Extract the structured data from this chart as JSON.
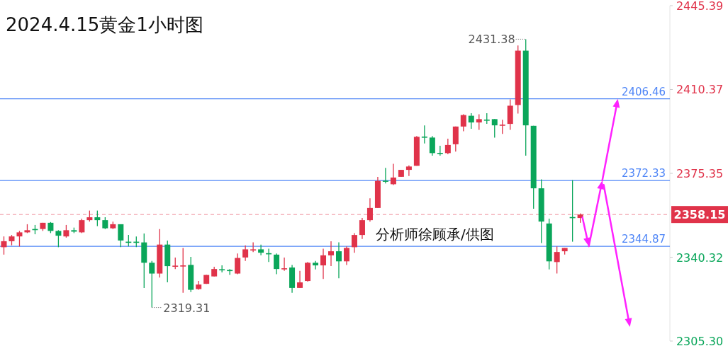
{
  "chart_data": {
    "type": "candlestick",
    "title": "2024.4.15黄金1小时图",
    "categories": [
      null,
      null,
      null,
      null,
      null,
      null,
      null,
      null,
      null,
      null,
      null,
      null,
      null,
      null,
      null,
      null,
      null,
      null,
      null,
      null,
      null,
      null,
      null,
      null,
      null,
      null,
      null,
      null,
      null,
      null,
      null,
      null,
      null,
      null,
      null,
      null,
      null,
      null,
      null,
      null,
      null,
      null,
      null,
      null,
      null,
      null,
      null,
      null,
      null,
      null,
      null,
      null,
      null,
      null,
      null,
      null,
      null,
      null,
      null,
      null,
      null,
      null,
      null,
      null,
      null,
      null,
      null,
      null,
      null,
      null,
      null,
      null,
      null,
      null,
      null,
      null,
      null,
      null,
      null,
      null,
      null,
      null,
      null,
      null,
      null,
      null
    ],
    "ohlc": [
      [
        2344.5,
        2349.0,
        2341.4,
        2347.0
      ],
      [
        2347.0,
        2349.6,
        2345.3,
        2349.0
      ],
      [
        2349.0,
        2351.3,
        2344.8,
        2350.7
      ],
      [
        2350.7,
        2354.1,
        2350.4,
        2351.6
      ],
      [
        2352.1,
        2353.8,
        2349.9,
        2351.9
      ],
      [
        2352.1,
        2354.7,
        2351.3,
        2354.7
      ],
      [
        2354.7,
        2355.0,
        2350.4,
        2351.3
      ],
      [
        2351.3,
        2351.6,
        2344.5,
        2349.3
      ],
      [
        2349.0,
        2353.8,
        2348.5,
        2351.6
      ],
      [
        2351.6,
        2352.7,
        2350.4,
        2351.0
      ],
      [
        2350.7,
        2356.4,
        2350.4,
        2355.8
      ],
      [
        2355.8,
        2359.8,
        2355.2,
        2357.0
      ],
      [
        2357.0,
        2359.8,
        2353.3,
        2355.8
      ],
      [
        2355.8,
        2357.0,
        2352.1,
        2352.4
      ],
      [
        2352.4,
        2355.2,
        2352.1,
        2354.1
      ],
      [
        2354.1,
        2354.1,
        2344.5,
        2347.3
      ],
      [
        2346.8,
        2349.6,
        2344.8,
        2346.6
      ],
      [
        2346.8,
        2349.0,
        2344.5,
        2346.6
      ],
      [
        2346.5,
        2350.2,
        2327.5,
        2338.0
      ],
      [
        2338.0,
        2338.8,
        2319.31,
        2333.5
      ],
      [
        2333.5,
        2352.1,
        2331.8,
        2345.6
      ],
      [
        2345.6,
        2347.3,
        2329.8,
        2336.6
      ],
      [
        2336.6,
        2340.2,
        2335.4,
        2336.8
      ],
      [
        2336.7,
        2344.2,
        2325.5,
        2336.9
      ],
      [
        2337.1,
        2340.5,
        2325.8,
        2326.7
      ],
      [
        2327.0,
        2330.4,
        2326.7,
        2328.9
      ],
      [
        2329.2,
        2332.9,
        2329.2,
        2332.9
      ],
      [
        2332.3,
        2336.3,
        2332.3,
        2335.4
      ],
      [
        2335.3,
        2336.9,
        2334.0,
        2335.2
      ],
      [
        2335.0,
        2335.4,
        2332.9,
        2334.9
      ],
      [
        2333.5,
        2341.9,
        2333.2,
        2340.0
      ],
      [
        2340.2,
        2345.3,
        2338.8,
        2343.6
      ],
      [
        2343.5,
        2346.5,
        2342.5,
        2343.6
      ],
      [
        2343.6,
        2345.6,
        2341.1,
        2342.2
      ],
      [
        2342.0,
        2343.9,
        2338.3,
        2341.9
      ],
      [
        2341.4,
        2341.9,
        2333.2,
        2335.4
      ],
      [
        2335.6,
        2340.2,
        2334.6,
        2335.7
      ],
      [
        2336.0,
        2337.1,
        2325.5,
        2327.5
      ],
      [
        2327.5,
        2334.6,
        2327.5,
        2329.8
      ],
      [
        2330.4,
        2338.3,
        2330.1,
        2338.0
      ],
      [
        2338.0,
        2338.8,
        2335.2,
        2336.9
      ],
      [
        2336.9,
        2343.9,
        2331.2,
        2341.1
      ],
      [
        2341.1,
        2347.0,
        2336.6,
        2342.8
      ],
      [
        2342.8,
        2346.5,
        2331.5,
        2338.6
      ],
      [
        2338.6,
        2344.8,
        2337.1,
        2344.2
      ],
      [
        2344.5,
        2350.4,
        2342.2,
        2349.6
      ],
      [
        2349.6,
        2356.7,
        2347.9,
        2355.8
      ],
      [
        2355.8,
        2364.9,
        2355.2,
        2360.9
      ],
      [
        2360.9,
        2373.9,
        2360.9,
        2372.2
      ],
      [
        2372.3,
        2377.6,
        2371.1,
        2372.2
      ],
      [
        2370.8,
        2379.3,
        2370.5,
        2373.6
      ],
      [
        2373.9,
        2376.8,
        2373.9,
        2376.8
      ],
      [
        2376.8,
        2378.7,
        2374.2,
        2378.2
      ],
      [
        2378.5,
        2390.9,
        2378.5,
        2390.6
      ],
      [
        2390.7,
        2395.4,
        2387.8,
        2390.5
      ],
      [
        2390.3,
        2390.9,
        2382.7,
        2383.8
      ],
      [
        2383.9,
        2386.9,
        2382.7,
        2383.8
      ],
      [
        2383.8,
        2389.8,
        2383.3,
        2387.2
      ],
      [
        2387.5,
        2394.9,
        2384.4,
        2394.9
      ],
      [
        2394.9,
        2400.0,
        2392.9,
        2399.7
      ],
      [
        2399.4,
        2400.5,
        2394.0,
        2396.6
      ],
      [
        2396.6,
        2400.0,
        2393.5,
        2398.0
      ],
      [
        2397.8,
        2400.5,
        2396.0,
        2397.7
      ],
      [
        2398.0,
        2398.0,
        2390.3,
        2395.4
      ],
      [
        2395.6,
        2397.7,
        2391.8,
        2395.7
      ],
      [
        2396.0,
        2406.2,
        2393.5,
        2403.6
      ],
      [
        2403.9,
        2428.8,
        2400.3,
        2426.6
      ],
      [
        2426.6,
        2431.38,
        2382.7,
        2395.4
      ],
      [
        2395.2,
        2395.2,
        2360.6,
        2369.1
      ],
      [
        2369.1,
        2372.8,
        2346.2,
        2355.2
      ],
      [
        2354.4,
        2356.4,
        2335.2,
        2338.6
      ],
      [
        2338.3,
        2344.8,
        2333.5,
        2342.5
      ],
      [
        2342.8,
        2344.2,
        2341.4,
        2344.2
      ],
      [
        2357.1,
        2372.5,
        2346.8,
        2357.0
      ],
      [
        2356.7,
        2358.6,
        2354.7,
        2358.15
      ],
      null,
      null,
      null,
      null,
      null,
      null,
      null,
      null,
      null,
      null,
      null
    ],
    "colors": [
      "#e0334a",
      "#e0334a",
      "#e0334a",
      "#e0334a",
      "#0aa65a",
      "#e0334a",
      "#0aa65a",
      "#0aa65a",
      "#e0334a",
      "#0aa65a",
      "#e0334a",
      "#e0334a",
      "#0aa65a",
      "#0aa65a",
      "#e0334a",
      "#0aa65a",
      "#0aa65a",
      "#0aa65a",
      "#0aa65a",
      "#0aa65a",
      "#e0334a",
      "#0aa65a",
      "#e0334a",
      "#e0334a",
      "#0aa65a",
      "#e0334a",
      "#e0334a",
      "#e0334a",
      "#0aa65a",
      "#0aa65a",
      "#e0334a",
      "#e0334a",
      "#e0334a",
      "#0aa65a",
      "#0aa65a",
      "#0aa65a",
      "#e0334a",
      "#0aa65a",
      "#e0334a",
      "#e0334a",
      "#0aa65a",
      "#e0334a",
      "#e0334a",
      "#0aa65a",
      "#e0334a",
      "#e0334a",
      "#e0334a",
      "#e0334a",
      "#e0334a",
      "#0aa65a",
      "#e0334a",
      "#e0334a",
      "#e0334a",
      "#e0334a",
      "#0aa65a",
      "#0aa65a",
      "#0aa65a",
      "#e0334a",
      "#e0334a",
      "#e0334a",
      "#0aa65a",
      "#e0334a",
      "#0aa65a",
      "#0aa65a",
      "#e0334a",
      "#e0334a",
      "#e0334a",
      "#0aa65a",
      "#0aa65a",
      "#0aa65a",
      "#0aa65a",
      "#e0334a",
      "#e0334a",
      "#0aa65a",
      "#e0334a",
      null,
      null,
      null,
      null,
      null,
      null,
      null,
      null,
      null,
      null,
      null
    ],
    "ylim": [
      2305.3,
      2445.39
    ],
    "yticks": [
      {
        "value": 2305.3,
        "label": "2305.30"
      },
      2340.32,
      2375.35,
      2410.37,
      2445.39
    ],
    "tick_labels": "y",
    "ref_lines": [
      {
        "axis": "y",
        "value": 2406.46,
        "label": "2406.46",
        "color": "#4f86f7"
      },
      {
        "axis": "y",
        "value": 2372.33,
        "label": "2372.33",
        "color": "#4f86f7"
      },
      {
        "axis": "y",
        "value": 2344.87,
        "label": "2344.87",
        "color": "#4f86f7"
      },
      {
        "axis": "y",
        "value": 2358.15,
        "label": "2358.15",
        "color": "#e0334a",
        "line_style": "dashed"
      }
    ],
    "annotations": [
      "分析师徐顾承/供图",
      "2431.38",
      "2319.31"
    ]
  }
}
